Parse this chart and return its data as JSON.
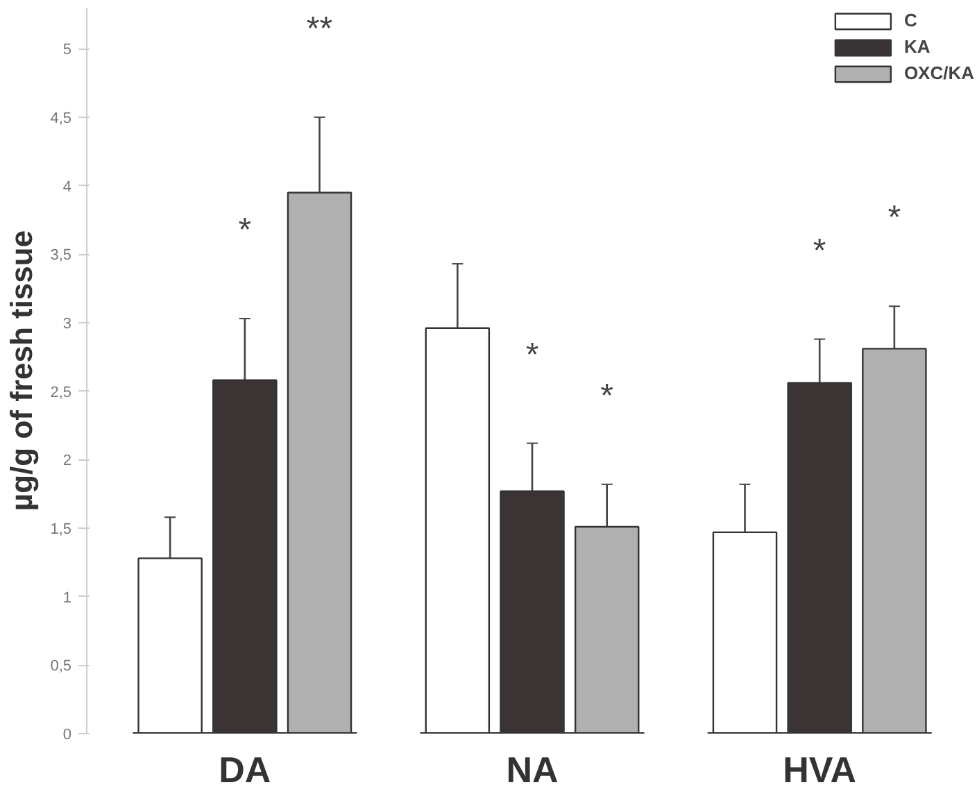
{
  "chart_data": {
    "type": "bar",
    "ylabel": "µg/g of fresh tissue",
    "categories": [
      "DA",
      "NA",
      "HVA"
    ],
    "series": [
      {
        "name": "C",
        "color": "#ffffff",
        "values": [
          1.28,
          2.96,
          1.47
        ],
        "errors": [
          0.3,
          0.47,
          0.35
        ]
      },
      {
        "name": "KA",
        "color": "#3a3534",
        "values": [
          2.58,
          1.77,
          2.56
        ],
        "errors": [
          0.45,
          0.35,
          0.32
        ]
      },
      {
        "name": "OXC/KA",
        "color": "#b0b0b0",
        "values": [
          3.95,
          1.51,
          2.81
        ],
        "errors": [
          0.55,
          0.31,
          0.31
        ]
      }
    ],
    "ylim": [
      0,
      5.3
    ],
    "yticks": [
      0,
      {
        "value": 0.5,
        "label": "0,5"
      },
      1,
      {
        "value": 1.5,
        "label": "1,5"
      },
      2,
      {
        "value": 2.5,
        "label": "2,5"
      },
      3,
      {
        "value": 3.5,
        "label": "3,5"
      },
      4,
      {
        "value": 4.5,
        "label": "4,5"
      },
      5
    ],
    "annotations": [
      "*",
      "**",
      "*",
      "*",
      "*",
      "*"
    ],
    "grid": false,
    "legend": "top right"
  }
}
